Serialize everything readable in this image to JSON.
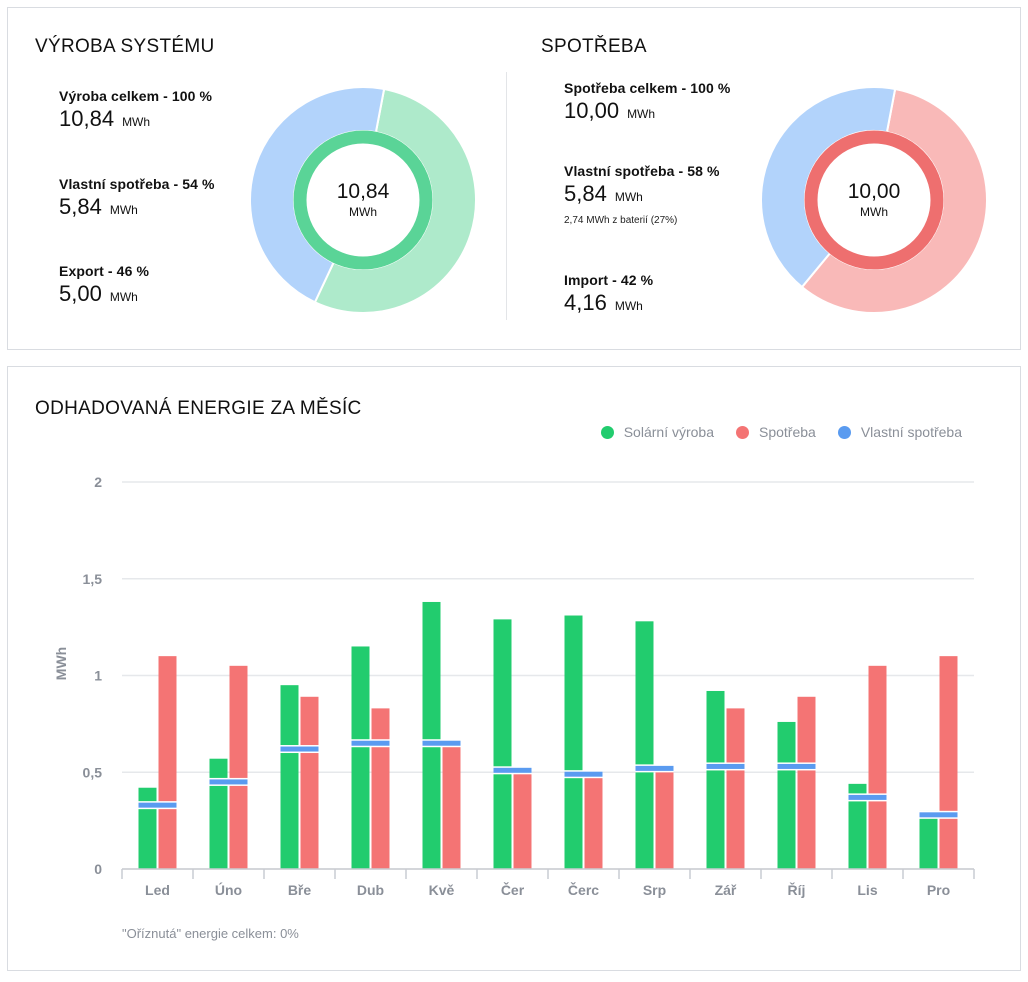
{
  "colors": {
    "solar": "#22cc6e",
    "consumption": "#f47474",
    "self": "#5a9bf0",
    "solar_light": "#aeeacb",
    "consumption_light": "#f9b9b8",
    "blue_light": "#b2d3fb",
    "ring_green": "#5ad497",
    "ring_red": "#ee6f6f",
    "grid": "#e6e8eb",
    "axis_text": "#8a8f98"
  },
  "production": {
    "title": "VÝROBA SYSTÉMU",
    "total": {
      "label": "Výroba celkem - 100 %",
      "value": "10,84",
      "unit": "MWh"
    },
    "self": {
      "label": "Vlastní spotřeba - 54 %",
      "value": "5,84",
      "unit": "MWh"
    },
    "export": {
      "label": "Export - 46 %",
      "value": "5,00",
      "unit": "MWh"
    },
    "donut": {
      "center_value": "10,84",
      "center_unit": "MWh",
      "green_fraction": 0.54,
      "blue_fraction": 0.46
    }
  },
  "consumption": {
    "title": "SPOTŘEBA",
    "total": {
      "label": "Spotřeba celkem - 100 %",
      "value": "10,00",
      "unit": "MWh"
    },
    "self": {
      "label": "Vlastní spotřeba - 58 %",
      "value": "5,84",
      "unit": "MWh",
      "note": "2,74 MWh z baterií (27%)"
    },
    "import": {
      "label": "Import - 42 %",
      "value": "4,16",
      "unit": "MWh"
    },
    "donut": {
      "center_value": "10,00",
      "center_unit": "MWh",
      "red_fraction": 0.58,
      "blue_fraction": 0.42
    }
  },
  "monthly": {
    "title": "ODHADOVANÁ ENERGIE ZA MĚSÍC",
    "legend": [
      "Solární výroba",
      "Spotřeba",
      "Vlastní spotřeba"
    ],
    "footnote": "\"Oříznutá\" energie celkem: 0%"
  },
  "chart_data": {
    "type": "bar",
    "title": "ODHADOVANÁ ENERGIE ZA MĚSÍC",
    "ylabel": "MWh",
    "xlabel": "",
    "ylim": [
      0,
      2
    ],
    "yticks": [
      0,
      0.5,
      1,
      1.5,
      2
    ],
    "ytick_labels": [
      "0",
      "0,5",
      "1",
      "1,5",
      "2"
    ],
    "grid": true,
    "legend_position": "top-right",
    "categories": [
      "Led",
      "Úno",
      "Bře",
      "Dub",
      "Kvě",
      "Čer",
      "Čerc",
      "Srp",
      "Zář",
      "Říj",
      "Lis",
      "Pro"
    ],
    "series": [
      {
        "name": "Solární výroba",
        "values": [
          0.42,
          0.57,
          0.95,
          1.15,
          1.38,
          1.29,
          1.31,
          1.28,
          0.92,
          0.76,
          0.44,
          0.3
        ]
      },
      {
        "name": "Spotřeba",
        "values": [
          1.1,
          1.05,
          0.89,
          0.83,
          0.64,
          0.51,
          0.49,
          0.52,
          0.83,
          0.89,
          1.05,
          1.1
        ]
      },
      {
        "name": "Vlastní spotřeba",
        "values": [
          0.33,
          0.45,
          0.62,
          0.65,
          0.65,
          0.51,
          0.49,
          0.52,
          0.53,
          0.53,
          0.37,
          0.28
        ]
      }
    ]
  }
}
